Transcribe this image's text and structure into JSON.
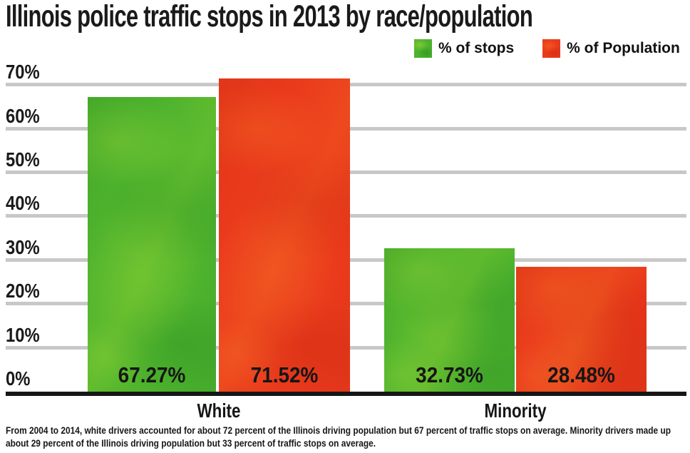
{
  "chart_data": {
    "type": "bar",
    "title": "Illinois police traffic stops in 2013 by race/population",
    "categories": [
      "White",
      "Minority"
    ],
    "series": [
      {
        "name": "% of stops",
        "color": "#4db22d",
        "values": [
          67.27,
          32.73
        ]
      },
      {
        "name": "% of Population",
        "color": "#ea3a1c",
        "values": [
          71.52,
          28.48
        ]
      }
    ],
    "value_labels": [
      [
        "67.27%",
        "71.52%"
      ],
      [
        "32.73%",
        "28.48%"
      ]
    ],
    "yticks": [
      0,
      10,
      20,
      30,
      40,
      50,
      60,
      70
    ],
    "ytick_labels": [
      "0%",
      "10%",
      "20%",
      "30%",
      "40%",
      "50%",
      "60%",
      "70%"
    ],
    "ylim": [
      0,
      70
    ],
    "grid": "horizontal-gray",
    "legend_position": "top-right",
    "footnote": "From 2004 to 2014, white drivers accounted for about 72 percent of the Illinois driving population but 67 percent of traffic stops on average. Minority drivers made up about 29 percent of the Illinois driving population but 33 percent of traffic stops on average."
  }
}
